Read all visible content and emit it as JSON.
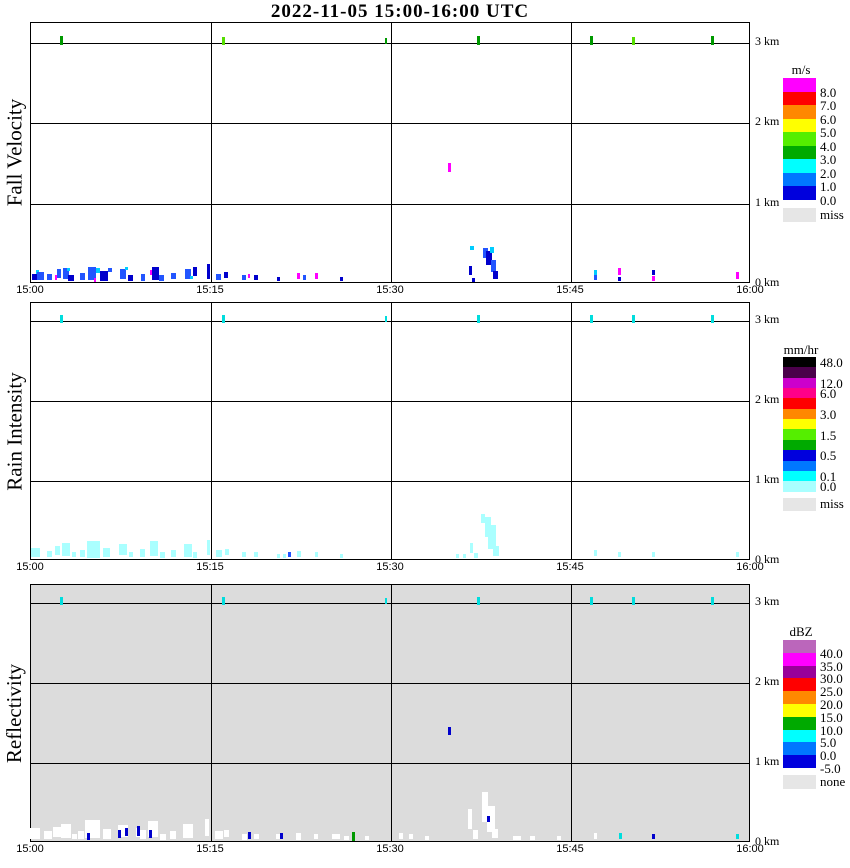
{
  "title": "2022-11-05  15:00-16:00 UTC",
  "palette": {
    "b": "#0000CC",
    "B": "#2255FF",
    "c": "#00CCFF",
    "C": "#AAFFFF",
    "m": "#FF00FF",
    "g": "#009900",
    "G": "#55DD00",
    "w": "#FFFFFF",
    "t": "#00DDDD"
  },
  "chart_data": [
    {
      "type": "heatmap",
      "id": "fall-velocity",
      "ylabel": "Fall Velocity",
      "background": "#FFFFFF",
      "x_ticks": [
        "15:00",
        "15:15",
        "15:30",
        "15:45",
        "16:00"
      ],
      "y_ticks": [
        "3 km",
        "2 km",
        "1 km",
        "0 km"
      ],
      "xlim_minutes": [
        0,
        60
      ],
      "ylim_km": [
        0,
        3.25
      ],
      "legend": {
        "title": "m/s",
        "label_mode": "boundary",
        "blocks": [
          {
            "c": "#FF00FF",
            "v": "8.0"
          },
          {
            "c": "#FF0000",
            "v": "7.0"
          },
          {
            "c": "#FF8800",
            "v": "6.0"
          },
          {
            "c": "#FFFF00",
            "v": "5.0"
          },
          {
            "c": "#55EE00",
            "v": "4.0"
          },
          {
            "c": "#00AA00",
            "v": "3.0"
          },
          {
            "c": "#00FFFF",
            "v": "2.0"
          },
          {
            "c": "#0077FF",
            "v": "1.0"
          },
          {
            "c": "#0000DD",
            "v": "0.0"
          }
        ],
        "extra": {
          "c": "#E6E6E6",
          "v": "miss"
        }
      },
      "marks": [
        [
          2.5,
          3,
          3,
          9,
          "g"
        ],
        [
          16,
          3,
          3,
          8,
          "G"
        ],
        [
          29.6,
          3,
          2,
          6,
          "g"
        ],
        [
          37.3,
          3,
          3,
          9,
          "g"
        ],
        [
          46.7,
          3,
          3,
          9,
          "g"
        ],
        [
          50.2,
          3,
          3,
          8,
          "G"
        ],
        [
          56.8,
          3,
          3,
          9,
          "g"
        ],
        [
          0.3,
          0.06,
          5,
          6,
          "b"
        ],
        [
          0.55,
          0.12,
          3,
          4,
          "c"
        ],
        [
          0.8,
          0.07,
          7,
          8,
          "B"
        ],
        [
          1.5,
          0.06,
          5,
          6,
          "B"
        ],
        [
          2.1,
          0.05,
          2,
          5,
          "m"
        ],
        [
          2.35,
          0.1,
          4,
          9,
          "B"
        ],
        [
          2.9,
          0.1,
          6,
          11,
          "B"
        ],
        [
          3.3,
          0.05,
          6,
          6,
          "b"
        ],
        [
          3.15,
          0.16,
          3,
          3,
          "c"
        ],
        [
          4.25,
          0.07,
          5,
          7,
          "B"
        ],
        [
          5.05,
          0.1,
          8,
          13,
          "B"
        ],
        [
          5.3,
          0.03,
          2,
          4,
          "m"
        ],
        [
          5.6,
          0.14,
          4,
          5,
          "c"
        ],
        [
          6.05,
          0.08,
          8,
          10,
          "b"
        ],
        [
          6.6,
          0.15,
          4,
          4,
          "B"
        ],
        [
          7.65,
          0.1,
          6,
          10,
          "B"
        ],
        [
          7.95,
          0.17,
          3,
          3,
          "c"
        ],
        [
          8.25,
          0.05,
          5,
          6,
          "b"
        ],
        [
          9.3,
          0.06,
          4,
          7,
          "B"
        ],
        [
          10.0,
          0.12,
          2,
          5,
          "m"
        ],
        [
          10.35,
          0.1,
          7,
          13,
          "b"
        ],
        [
          10.9,
          0.05,
          5,
          6,
          "B"
        ],
        [
          11.85,
          0.07,
          5,
          6,
          "B"
        ],
        [
          13.05,
          0.1,
          6,
          10,
          "B"
        ],
        [
          13.35,
          0.05,
          3,
          3,
          "c"
        ],
        [
          13.65,
          0.13,
          4,
          9,
          "b"
        ],
        [
          14.75,
          0.13,
          3,
          15,
          "b"
        ],
        [
          15.65,
          0.06,
          5,
          6,
          "B"
        ],
        [
          16.25,
          0.09,
          4,
          6,
          "b"
        ],
        [
          17.75,
          0.05,
          4,
          5,
          "B"
        ],
        [
          18.15,
          0.08,
          2,
          4,
          "m"
        ],
        [
          18.75,
          0.05,
          4,
          5,
          "b"
        ],
        [
          20.6,
          0.04,
          3,
          4,
          "b"
        ],
        [
          22.25,
          0.07,
          3,
          6,
          "m"
        ],
        [
          22.75,
          0.05,
          3,
          5,
          "B"
        ],
        [
          23.75,
          0.08,
          3,
          6,
          "m"
        ],
        [
          25.85,
          0.04,
          3,
          4,
          "b"
        ],
        [
          34.85,
          1.42,
          3,
          9,
          "m"
        ],
        [
          36.65,
          0.14,
          3,
          9,
          "b"
        ],
        [
          36.85,
          0.03,
          3,
          4,
          "b"
        ],
        [
          36.75,
          0.42,
          4,
          4,
          "c"
        ],
        [
          37.85,
          0.36,
          5,
          10,
          "B"
        ],
        [
          38.2,
          0.3,
          6,
          14,
          "b"
        ],
        [
          38.45,
          0.4,
          4,
          6,
          "c"
        ],
        [
          38.55,
          0.2,
          5,
          12,
          "B"
        ],
        [
          38.7,
          0.09,
          5,
          8,
          "b"
        ],
        [
          47.0,
          0.12,
          3,
          5,
          "c"
        ],
        [
          47.0,
          0.05,
          3,
          5,
          "B"
        ],
        [
          49.0,
          0.13,
          3,
          7,
          "m"
        ],
        [
          49.0,
          0.04,
          3,
          4,
          "b"
        ],
        [
          51.85,
          0.12,
          3,
          5,
          "b"
        ],
        [
          51.85,
          0.04,
          3,
          5,
          "m"
        ],
        [
          58.9,
          0.08,
          3,
          7,
          "m"
        ]
      ]
    },
    {
      "type": "heatmap",
      "id": "rain-intensity",
      "ylabel": "Rain Intensity",
      "background": "#FFFFFF",
      "x_ticks": [
        "15:00",
        "15:15",
        "15:30",
        "15:45",
        "16:00"
      ],
      "y_ticks": [
        "3 km",
        "2 km",
        "1 km",
        "0 km"
      ],
      "xlim_minutes": [
        0,
        60
      ],
      "ylim_km": [
        0,
        3.25
      ],
      "legend": {
        "title": "mm/hr",
        "label_mode": "center",
        "blocks": [
          {
            "c": "#000000",
            "v": "48.0"
          },
          {
            "c": "#4B004B",
            "v": ""
          },
          {
            "c": "#CC00CC",
            "v": "12.0"
          },
          {
            "c": "#FF0088",
            "v": "6.0"
          },
          {
            "c": "#FF0000",
            "v": ""
          },
          {
            "c": "#FF8800",
            "v": "3.0"
          },
          {
            "c": "#FFFF00",
            "v": ""
          },
          {
            "c": "#55EE00",
            "v": "1.5"
          },
          {
            "c": "#00AA00",
            "v": ""
          },
          {
            "c": "#0000DD",
            "v": "0.5"
          },
          {
            "c": "#0077FF",
            "v": ""
          },
          {
            "c": "#00FFFF",
            "v": "0.1"
          },
          {
            "c": "#AAFFFF",
            "v": "0.0"
          }
        ],
        "extra": {
          "c": "#E6E6E6",
          "v": "miss"
        }
      },
      "marks": [
        [
          2.5,
          3,
          3,
          8,
          "t"
        ],
        [
          16,
          3,
          3,
          8,
          "t"
        ],
        [
          29.6,
          3,
          2,
          6,
          "t"
        ],
        [
          37.3,
          3,
          3,
          8,
          "t"
        ],
        [
          46.7,
          3,
          3,
          8,
          "t"
        ],
        [
          50.2,
          3,
          3,
          8,
          "t"
        ],
        [
          56.8,
          3,
          3,
          8,
          "t"
        ],
        [
          0.35,
          0.08,
          9,
          9,
          "C"
        ],
        [
          1.5,
          0.06,
          5,
          6,
          "C"
        ],
        [
          2.2,
          0.1,
          5,
          9,
          "C"
        ],
        [
          2.95,
          0.12,
          8,
          13,
          "C"
        ],
        [
          3.6,
          0.05,
          4,
          5,
          "C"
        ],
        [
          4.25,
          0.07,
          5,
          7,
          "C"
        ],
        [
          5.2,
          0.12,
          13,
          17,
          "C"
        ],
        [
          6.3,
          0.08,
          7,
          9,
          "C"
        ],
        [
          7.7,
          0.12,
          8,
          11,
          "C"
        ],
        [
          8.3,
          0.05,
          4,
          5,
          "C"
        ],
        [
          9.3,
          0.07,
          5,
          8,
          "C"
        ],
        [
          10.25,
          0.13,
          8,
          15,
          "C"
        ],
        [
          10.95,
          0.05,
          5,
          6,
          "C"
        ],
        [
          11.85,
          0.07,
          5,
          7,
          "C"
        ],
        [
          13.1,
          0.11,
          8,
          13,
          "C"
        ],
        [
          13.7,
          0.05,
          4,
          6,
          "C"
        ],
        [
          14.75,
          0.14,
          3,
          15,
          "C"
        ],
        [
          15.7,
          0.07,
          6,
          7,
          "C"
        ],
        [
          16.3,
          0.09,
          4,
          6,
          "C"
        ],
        [
          17.75,
          0.05,
          4,
          5,
          "C"
        ],
        [
          18.75,
          0.05,
          4,
          5,
          "C"
        ],
        [
          20.6,
          0.04,
          3,
          4,
          "C"
        ],
        [
          21.1,
          0.04,
          3,
          4,
          "C"
        ],
        [
          21.55,
          0.05,
          3,
          5,
          "B"
        ],
        [
          22.3,
          0.06,
          4,
          6,
          "C"
        ],
        [
          23.8,
          0.05,
          3,
          5,
          "C"
        ],
        [
          25.9,
          0.04,
          3,
          4,
          "C"
        ],
        [
          35.55,
          0.04,
          3,
          4,
          "C"
        ],
        [
          36.1,
          0.04,
          3,
          4,
          "C"
        ],
        [
          36.7,
          0.14,
          3,
          10,
          "C"
        ],
        [
          37.1,
          0.04,
          4,
          5,
          "C"
        ],
        [
          37.65,
          0.5,
          4,
          9,
          "C"
        ],
        [
          38.05,
          0.4,
          6,
          20,
          "C"
        ],
        [
          38.45,
          0.28,
          8,
          24,
          "C"
        ],
        [
          38.75,
          0.1,
          6,
          10,
          "C"
        ],
        [
          47.0,
          0.07,
          3,
          6,
          "C"
        ],
        [
          49.0,
          0.06,
          3,
          5,
          "C"
        ],
        [
          51.85,
          0.06,
          3,
          5,
          "C"
        ],
        [
          58.9,
          0.06,
          3,
          5,
          "C"
        ]
      ]
    },
    {
      "type": "heatmap",
      "id": "reflectivity",
      "ylabel": "Reflectivity",
      "background": "#DCDCDC",
      "x_ticks": [
        "15:00",
        "15:15",
        "15:30",
        "15:45",
        "16:00"
      ],
      "y_ticks": [
        "3 km",
        "2 km",
        "1 km",
        "0 km"
      ],
      "xlim_minutes": [
        0,
        60
      ],
      "ylim_km": [
        0,
        3.25
      ],
      "legend": {
        "title": "dBZ",
        "label_mode": "boundary",
        "blocks": [
          {
            "c": "#BB66BB",
            "v": "40.0"
          },
          {
            "c": "#FF00FF",
            "v": "35.0"
          },
          {
            "c": "#990099",
            "v": "30.0"
          },
          {
            "c": "#FF0000",
            "v": "25.0"
          },
          {
            "c": "#FF8800",
            "v": "20.0"
          },
          {
            "c": "#FFFF00",
            "v": "15.0"
          },
          {
            "c": "#00AA00",
            "v": "10.0"
          },
          {
            "c": "#00FFFF",
            "v": "5.0"
          },
          {
            "c": "#0077FF",
            "v": "0.0"
          },
          {
            "c": "#0000DD",
            "v": "-5.0"
          }
        ],
        "extra": {
          "c": "#E6E6E6",
          "v": "none"
        }
      },
      "marks": [
        [
          2.5,
          3,
          3,
          8,
          "t"
        ],
        [
          16,
          3,
          3,
          8,
          "t"
        ],
        [
          29.6,
          3,
          2,
          6,
          "t"
        ],
        [
          37.3,
          3,
          3,
          8,
          "t"
        ],
        [
          46.7,
          3,
          3,
          8,
          "t"
        ],
        [
          50.2,
          3,
          3,
          8,
          "t"
        ],
        [
          56.8,
          3,
          3,
          8,
          "t"
        ],
        [
          0.3,
          0.09,
          11,
          11,
          "w"
        ],
        [
          1.4,
          0.07,
          8,
          8,
          "w"
        ],
        [
          2.2,
          0.11,
          8,
          10,
          "w"
        ],
        [
          2.95,
          0.13,
          10,
          14,
          "w"
        ],
        [
          3.6,
          0.05,
          5,
          5,
          "w"
        ],
        [
          4.2,
          0.08,
          6,
          8,
          "w"
        ],
        [
          5.1,
          0.15,
          15,
          18,
          "w"
        ],
        [
          6.3,
          0.09,
          8,
          10,
          "w"
        ],
        [
          7.7,
          0.13,
          10,
          12,
          "w"
        ],
        [
          8.9,
          0.1,
          4,
          9,
          "w"
        ],
        [
          9.3,
          0.08,
          6,
          9,
          "w"
        ],
        [
          10.2,
          0.15,
          10,
          16,
          "w"
        ],
        [
          11.0,
          0.05,
          6,
          6,
          "w"
        ],
        [
          11.85,
          0.07,
          6,
          8,
          "w"
        ],
        [
          13.1,
          0.13,
          10,
          14,
          "w"
        ],
        [
          14.7,
          0.17,
          4,
          17,
          "w"
        ],
        [
          15.65,
          0.07,
          8,
          8,
          "w"
        ],
        [
          16.3,
          0.09,
          5,
          7,
          "w"
        ],
        [
          17.75,
          0.05,
          5,
          6,
          "w"
        ],
        [
          18.75,
          0.05,
          5,
          5,
          "w"
        ],
        [
          20.55,
          0.05,
          4,
          5,
          "w"
        ],
        [
          22.25,
          0.06,
          5,
          7,
          "w"
        ],
        [
          23.75,
          0.05,
          4,
          5,
          "w"
        ],
        [
          25.4,
          0.05,
          8,
          5,
          "w"
        ],
        [
          26.3,
          0.04,
          5,
          4,
          "w"
        ],
        [
          28.0,
          0.04,
          4,
          4,
          "w"
        ],
        [
          30.8,
          0.06,
          4,
          6,
          "w"
        ],
        [
          31.7,
          0.05,
          4,
          5,
          "w"
        ],
        [
          33.0,
          0.04,
          4,
          4,
          "w"
        ],
        [
          4.8,
          0.06,
          3,
          7,
          "b"
        ],
        [
          7.35,
          0.09,
          3,
          8,
          "b"
        ],
        [
          7.95,
          0.11,
          3,
          8,
          "b"
        ],
        [
          8.95,
          0.13,
          3,
          10,
          "b"
        ],
        [
          9.95,
          0.09,
          3,
          8,
          "b"
        ],
        [
          18.2,
          0.07,
          3,
          7,
          "b"
        ],
        [
          20.9,
          0.06,
          3,
          6,
          "b"
        ],
        [
          26.9,
          0.06,
          3,
          9,
          "g"
        ],
        [
          34.85,
          1.38,
          3,
          8,
          "b"
        ],
        [
          36.55,
          0.28,
          4,
          20,
          "w"
        ],
        [
          37.0,
          0.08,
          5,
          9,
          "w"
        ],
        [
          37.85,
          0.42,
          6,
          30,
          "w"
        ],
        [
          38.3,
          0.28,
          8,
          26,
          "w"
        ],
        [
          38.7,
          0.09,
          6,
          9,
          "w"
        ],
        [
          38.15,
          0.27,
          3,
          6,
          "b"
        ],
        [
          40.5,
          0.04,
          8,
          4,
          "w"
        ],
        [
          41.8,
          0.04,
          5,
          4,
          "w"
        ],
        [
          44.0,
          0.04,
          4,
          4,
          "w"
        ],
        [
          47.0,
          0.06,
          3,
          6,
          "w"
        ],
        [
          49.15,
          0.06,
          3,
          6,
          "t"
        ],
        [
          51.85,
          0.05,
          3,
          5,
          "b"
        ],
        [
          58.9,
          0.06,
          3,
          5,
          "t"
        ]
      ]
    }
  ]
}
